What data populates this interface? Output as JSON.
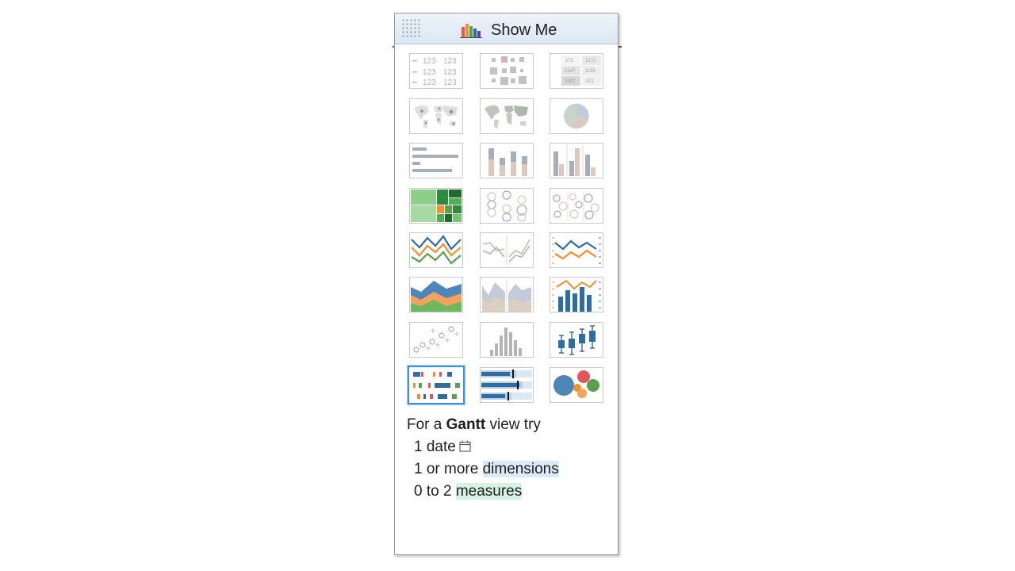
{
  "window": {
    "title": "Show Me",
    "title_icon": "bar-chart-icon"
  },
  "chart_types": [
    {
      "name": "text-table",
      "state": "available"
    },
    {
      "name": "heat-map",
      "state": "available"
    },
    {
      "name": "highlight-table",
      "state": "available"
    },
    {
      "name": "symbol-map",
      "state": "available"
    },
    {
      "name": "filled-map",
      "state": "available"
    },
    {
      "name": "pie-chart",
      "state": "available"
    },
    {
      "name": "horizontal-bars",
      "state": "available"
    },
    {
      "name": "stacked-bars",
      "state": "available"
    },
    {
      "name": "side-by-side-bars",
      "state": "available"
    },
    {
      "name": "treemap",
      "state": "available"
    },
    {
      "name": "circle-views",
      "state": "available"
    },
    {
      "name": "side-by-side-circles",
      "state": "available"
    },
    {
      "name": "continuous-lines",
      "state": "available"
    },
    {
      "name": "discrete-lines",
      "state": "available"
    },
    {
      "name": "dual-lines",
      "state": "available"
    },
    {
      "name": "area-charts-continuous",
      "state": "available"
    },
    {
      "name": "area-charts-discrete",
      "state": "available"
    },
    {
      "name": "dual-combination",
      "state": "available"
    },
    {
      "name": "scatter-plot",
      "state": "available"
    },
    {
      "name": "histogram",
      "state": "available"
    },
    {
      "name": "box-and-whisker",
      "state": "available"
    },
    {
      "name": "gantt-chart",
      "state": "selected"
    },
    {
      "name": "bullet-graph",
      "state": "available"
    },
    {
      "name": "packed-bubbles",
      "state": "available"
    }
  ],
  "text_table_values": [
    "123",
    "123",
    "123",
    "123",
    "123",
    "123"
  ],
  "highlight_table_values": [
    "172",
    "1272",
    "1547",
    "1195",
    "2582",
    "821"
  ],
  "hint": {
    "prefix": "For a ",
    "chart_name": "Gantt",
    "suffix": " view try",
    "req1_prefix": "1 date",
    "req1_icon": "calendar-icon",
    "req2_prefix": "1 or more ",
    "req2_keyword": "dimensions",
    "req3_prefix": "0 to 2 ",
    "req3_keyword": "measures"
  },
  "colors": {
    "selected_border": "#3d8fe0",
    "dimension_highlight": "#dde9f8",
    "measure_highlight": "#d6f2e3",
    "blue": "#2e6da4",
    "orange": "#f28e2b",
    "green": "#59a14f",
    "red": "#e15759"
  }
}
